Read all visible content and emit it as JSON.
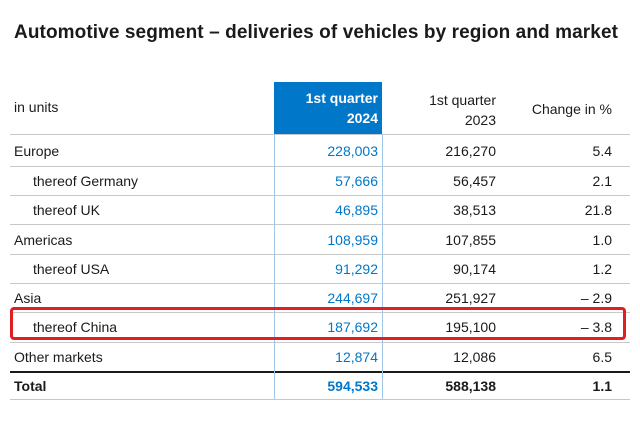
{
  "title": "Automotive segment – deliveries of vehicles by region and market",
  "header": {
    "unit_label": "in units",
    "current_period_line1": "1st quarter",
    "current_period_line2": "2024",
    "prior_period_line1": "1st quarter",
    "prior_period_line2": "2023",
    "change_label": "Change in %"
  },
  "rows": [
    {
      "label": "Europe",
      "q1_2024": "228,003",
      "q1_2023": "216,270",
      "change": "5.4"
    },
    {
      "label": "thereof Germany",
      "q1_2024": "57,666",
      "q1_2023": "56,457",
      "change": "2.1"
    },
    {
      "label": "thereof UK",
      "q1_2024": "46,895",
      "q1_2023": "38,513",
      "change": "21.8"
    },
    {
      "label": "Americas",
      "q1_2024": "108,959",
      "q1_2023": "107,855",
      "change": "1.0"
    },
    {
      "label": "thereof USA",
      "q1_2024": "91,292",
      "q1_2023": "90,174",
      "change": "1.2"
    },
    {
      "label": "Asia",
      "q1_2024": "244,697",
      "q1_2023": "251,927",
      "change": "– 2.9"
    },
    {
      "label": "thereof China",
      "q1_2024": "187,692",
      "q1_2023": "195,100",
      "change": "– 3.8"
    },
    {
      "label": "Other markets",
      "q1_2024": "12,874",
      "q1_2023": "12,086",
      "change": "6.5"
    },
    {
      "label": "Total",
      "q1_2024": "594,533",
      "q1_2023": "588,138",
      "change": "1.1"
    }
  ],
  "colors": {
    "accent": "#0077c8",
    "highlight": "#e02020"
  }
}
